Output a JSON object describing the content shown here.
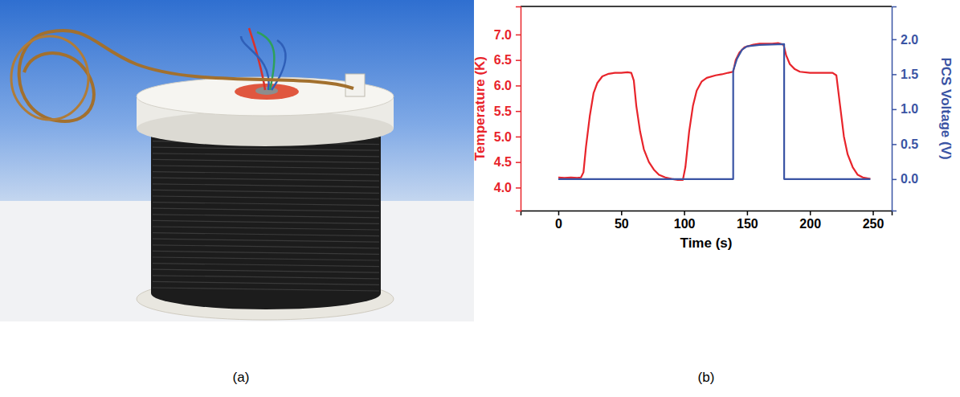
{
  "panel_labels": [
    "(a)",
    "(b)"
  ],
  "chart_data": {
    "type": "line",
    "x_label": "Time (s)",
    "y_label": "Temperature (K)",
    "y2_label": "PCS Voltage (V)",
    "xlim": [
      -30,
      265
    ],
    "xticks": [
      0,
      50,
      100,
      150,
      200,
      250
    ],
    "ylim": [
      3.55,
      7.55
    ],
    "yticks": [
      {
        "value": 4,
        "label": "4.0"
      },
      4.5,
      {
        "value": 5,
        "label": "5.0"
      },
      5.5,
      {
        "value": 6,
        "label": "6.0"
      },
      6.5,
      {
        "value": 7,
        "label": "7.0"
      }
    ],
    "y2lim": [
      -0.45,
      2.47
    ],
    "y2ticks": [
      {
        "value": 0,
        "label": "0.0"
      },
      0.5,
      {
        "value": 1,
        "label": "1.0"
      },
      1.5,
      {
        "value": 2,
        "label": "2.0"
      }
    ],
    "grid": false,
    "series": [
      {
        "color": "#e8242b",
        "x": [
          0,
          5,
          10,
          15,
          18,
          20,
          22,
          25,
          28,
          31,
          35,
          40,
          45,
          50,
          55,
          58,
          60,
          62,
          65,
          68,
          72,
          76,
          80,
          85,
          90,
          95,
          99,
          101,
          104,
          107,
          110,
          114,
          118,
          125,
          130,
          135,
          139,
          141,
          144,
          148,
          155,
          160,
          170,
          175,
          179,
          181,
          184,
          188,
          192,
          200,
          210,
          218,
          221,
          224,
          227,
          230,
          234,
          238,
          242,
          248
        ],
        "values": [
          4.2,
          4.19,
          4.2,
          4.19,
          4.2,
          4.3,
          4.8,
          5.4,
          5.85,
          6.05,
          6.18,
          6.23,
          6.25,
          6.25,
          6.26,
          6.25,
          6.1,
          5.6,
          5.1,
          4.75,
          4.5,
          4.35,
          4.25,
          4.2,
          4.17,
          4.15,
          4.15,
          4.4,
          5.1,
          5.6,
          5.9,
          6.08,
          6.15,
          6.2,
          6.22,
          6.25,
          6.27,
          6.5,
          6.65,
          6.75,
          6.8,
          6.82,
          6.82,
          6.83,
          6.8,
          6.6,
          6.42,
          6.32,
          6.27,
          6.25,
          6.25,
          6.25,
          6.2,
          5.6,
          5.0,
          4.65,
          4.4,
          4.25,
          4.2,
          4.17
        ]
      },
      {
        "color": "#3a54a4",
        "axis": "y2",
        "x": [
          0,
          139,
          139,
          142,
          146,
          150,
          160,
          179.5,
          179.5,
          248
        ],
        "values": [
          0,
          0,
          1.55,
          1.72,
          1.85,
          1.9,
          1.92,
          1.93,
          0,
          0
        ]
      }
    ]
  }
}
